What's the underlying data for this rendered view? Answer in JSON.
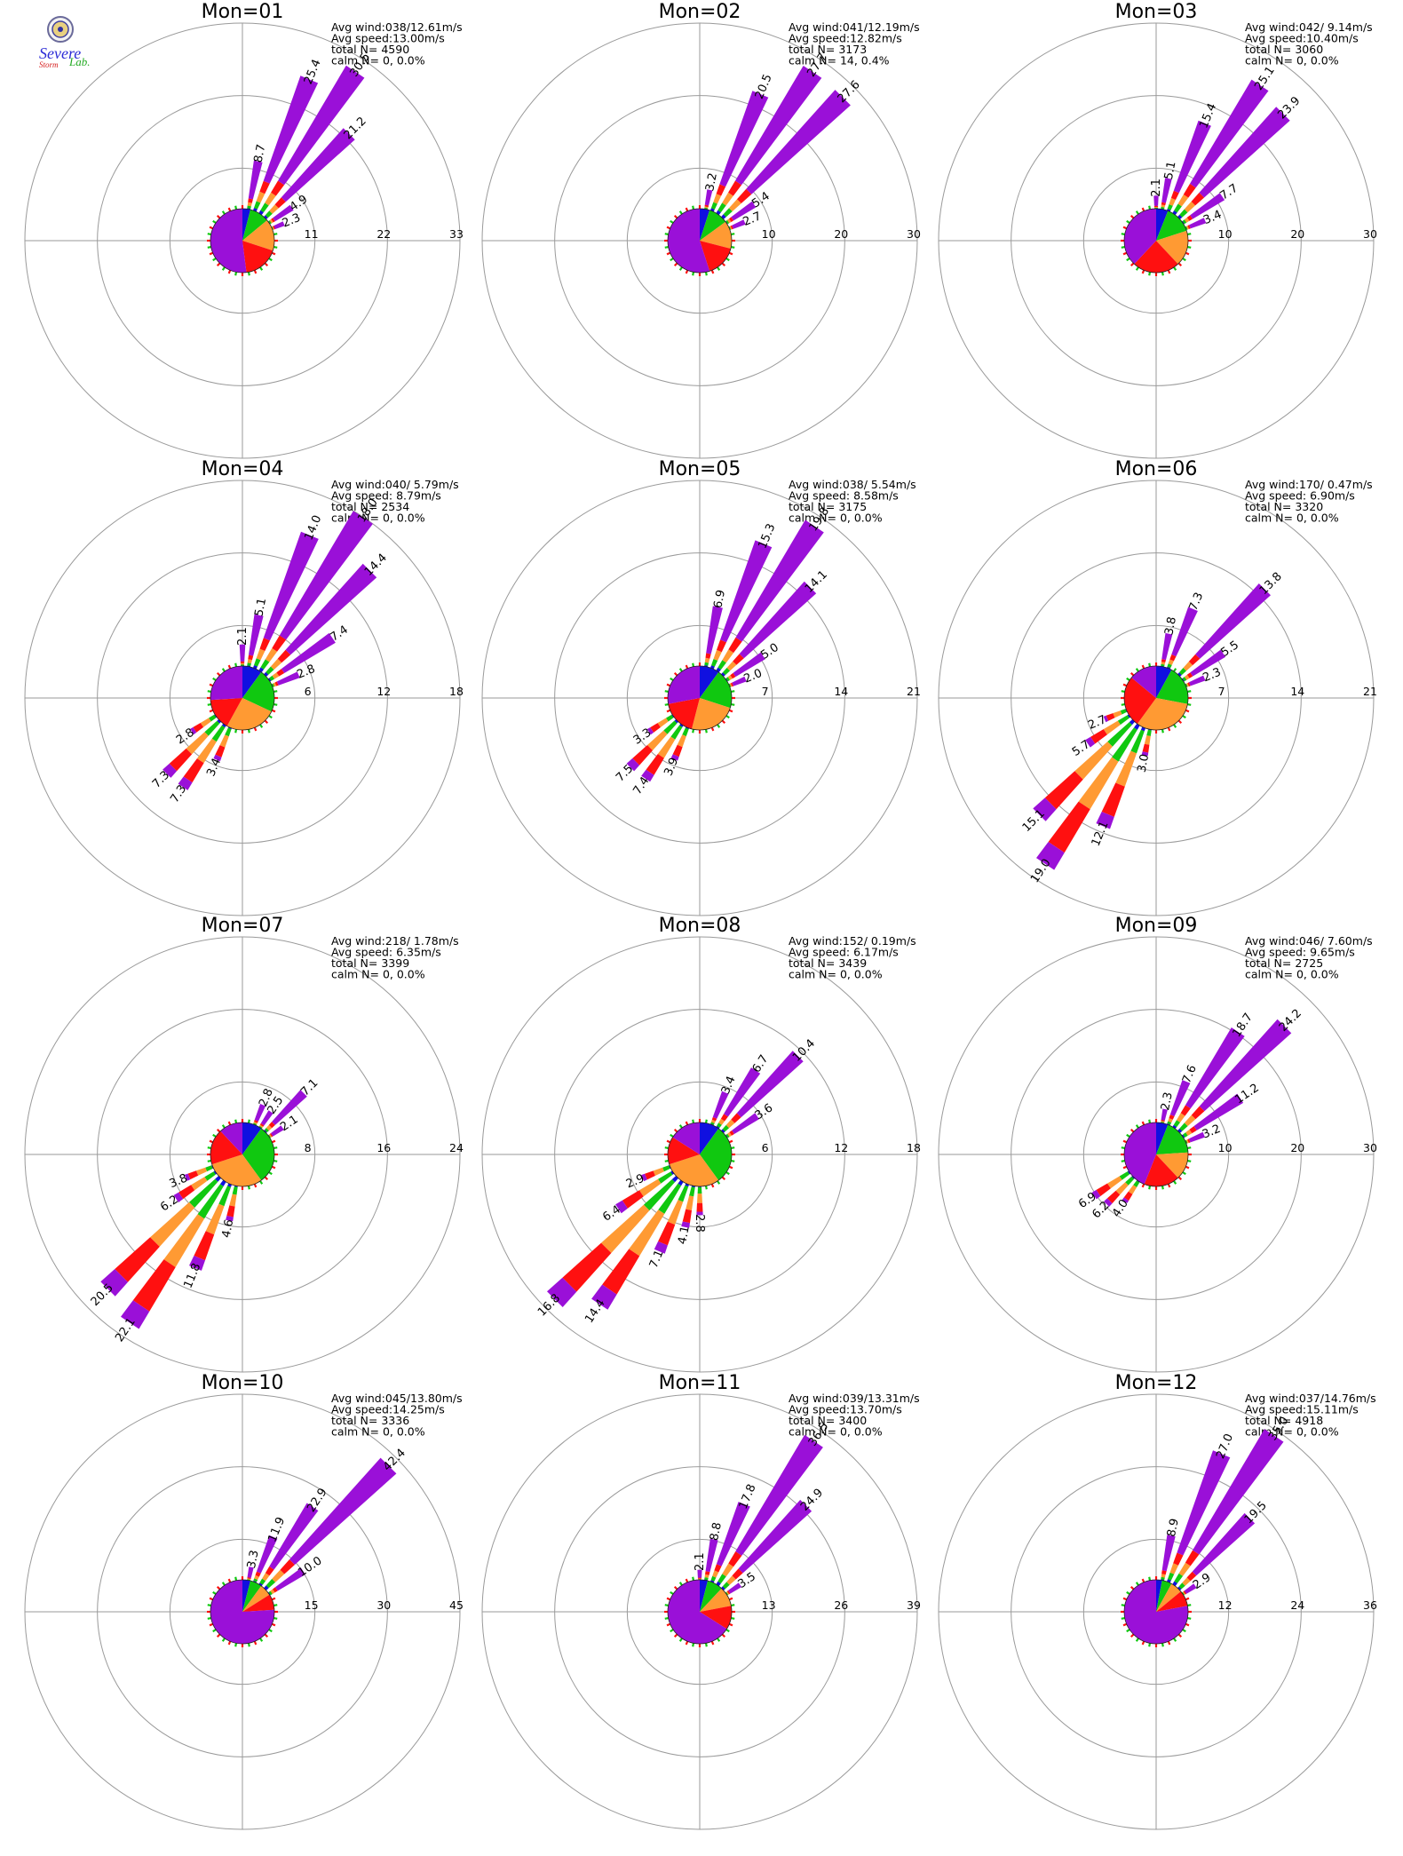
{
  "logo": {
    "seal_text": "",
    "line1": "Severe",
    "line2": "Storm",
    "line3": "Lab.",
    "colors": {
      "s": "#2b2bd6",
      "storm": "#d62020",
      "lab": "#22aa22"
    }
  },
  "colors": {
    "speed_bins": [
      "#1010e0",
      "#10c810",
      "#ff9a33",
      "#ff1010",
      "#9a10d8"
    ],
    "grid": "#9a9a9a"
  },
  "chart_data": [
    {
      "type": "windrose",
      "title": "Mon=01",
      "info": [
        "Avg wind:038/12.61m/s",
        "Avg speed:13.00m/s",
        "total N=      4590",
        "calm N=      0,   0.0%"
      ],
      "ticks": [
        "11",
        "22",
        "33"
      ],
      "rmax": 33,
      "petals": [
        {
          "dir": 22.5,
          "value": 25.4
        },
        {
          "dir": 33.75,
          "value": 30.5
        },
        {
          "dir": 45,
          "value": 21.2
        },
        {
          "dir": 11.25,
          "value": 8.7
        },
        {
          "dir": 56.25,
          "value": 4.9
        },
        {
          "dir": 67.5,
          "value": 2.3
        }
      ],
      "pie": [
        0.04,
        0.1,
        0.16,
        0.18,
        0.52
      ]
    },
    {
      "type": "windrose",
      "title": "Mon=02",
      "info": [
        "Avg wind:041/12.19m/s",
        "Avg speed:12.82m/s",
        "total N=      3173",
        "calm N=     14,   0.4%"
      ],
      "ticks": [
        "10",
        "20",
        "30"
      ],
      "rmax": 30,
      "petals": [
        {
          "dir": 22.5,
          "value": 20.5
        },
        {
          "dir": 33.75,
          "value": 27.7
        },
        {
          "dir": 45,
          "value": 27.6
        },
        {
          "dir": 11.25,
          "value": 3.2
        },
        {
          "dir": 56.25,
          "value": 5.4
        },
        {
          "dir": 67.5,
          "value": 2.7
        }
      ],
      "pie": [
        0.05,
        0.1,
        0.14,
        0.16,
        0.55
      ]
    },
    {
      "type": "windrose",
      "title": "Mon=03",
      "info": [
        "Avg wind:042/ 9.14m/s",
        "Avg speed:10.40m/s",
        "total N=      3060",
        "calm N=      0,   0.0%"
      ],
      "ticks": [
        "10",
        "20",
        "30"
      ],
      "rmax": 30,
      "petals": [
        {
          "dir": 22.5,
          "value": 15.4
        },
        {
          "dir": 33.75,
          "value": 25.1
        },
        {
          "dir": 45,
          "value": 23.9
        },
        {
          "dir": 11.25,
          "value": 5.1
        },
        {
          "dir": 0,
          "value": 2.1
        },
        {
          "dir": 56.25,
          "value": 7.7
        },
        {
          "dir": 67.5,
          "value": 3.4
        }
      ],
      "pie": [
        0.06,
        0.14,
        0.18,
        0.24,
        0.38
      ]
    },
    {
      "type": "windrose",
      "title": "Mon=04",
      "info": [
        "Avg wind:040/ 5.79m/s",
        "Avg speed: 8.79m/s",
        "total N=      2534",
        "calm N=      0,   0.0%"
      ],
      "ticks": [
        "6",
        "12",
        "18"
      ],
      "rmax": 18,
      "petals": [
        {
          "dir": 22.5,
          "value": 14.0
        },
        {
          "dir": 33.75,
          "value": 18.0
        },
        {
          "dir": 45,
          "value": 14.4
        },
        {
          "dir": 11.25,
          "value": 5.1
        },
        {
          "dir": 0,
          "value": 2.1
        },
        {
          "dir": 56.25,
          "value": 7.4
        },
        {
          "dir": 67.5,
          "value": 2.8
        },
        {
          "dir": 213.75,
          "value": 7.3
        },
        {
          "dir": 225,
          "value": 7.3
        },
        {
          "dir": 236.25,
          "value": 2.8
        },
        {
          "dir": 202.5,
          "value": 3.4
        }
      ],
      "pie": [
        0.1,
        0.22,
        0.26,
        0.16,
        0.26
      ]
    },
    {
      "type": "windrose",
      "title": "Mon=05",
      "info": [
        "Avg wind:038/ 5.54m/s",
        "Avg speed: 8.58m/s",
        "total N=      3175",
        "calm N=      0,   0.0%"
      ],
      "ticks": [
        "7",
        "14",
        "21"
      ],
      "rmax": 21,
      "petals": [
        {
          "dir": 22.5,
          "value": 15.3
        },
        {
          "dir": 33.75,
          "value": 19.8
        },
        {
          "dir": 45,
          "value": 14.1
        },
        {
          "dir": 11.25,
          "value": 6.9
        },
        {
          "dir": 56.25,
          "value": 5.0
        },
        {
          "dir": 67.5,
          "value": 2.0
        },
        {
          "dir": 213.75,
          "value": 7.4
        },
        {
          "dir": 225,
          "value": 7.5
        },
        {
          "dir": 236.25,
          "value": 3.3
        },
        {
          "dir": 202.5,
          "value": 3.9
        }
      ],
      "pie": [
        0.1,
        0.2,
        0.24,
        0.18,
        0.28
      ]
    },
    {
      "type": "windrose",
      "title": "Mon=06",
      "info": [
        "Avg wind:170/ 0.47m/s",
        "Avg speed: 6.90m/s",
        "total N=      3320",
        "calm N=      0,   0.0%"
      ],
      "ticks": [
        "7",
        "14",
        "21"
      ],
      "rmax": 21,
      "petals": [
        {
          "dir": 45,
          "value": 13.8
        },
        {
          "dir": 22.5,
          "value": 7.3
        },
        {
          "dir": 11.25,
          "value": 3.8
        },
        {
          "dir": 56.25,
          "value": 5.5
        },
        {
          "dir": 67.5,
          "value": 2.3
        },
        {
          "dir": 213.75,
          "value": 19.0
        },
        {
          "dir": 225,
          "value": 15.1
        },
        {
          "dir": 202.5,
          "value": 12.1
        },
        {
          "dir": 236.25,
          "value": 5.7
        },
        {
          "dir": 247.5,
          "value": 2.7
        },
        {
          "dir": 191.25,
          "value": 3.0
        }
      ],
      "pie": [
        0.08,
        0.2,
        0.32,
        0.26,
        0.14
      ]
    },
    {
      "type": "windrose",
      "title": "Mon=07",
      "info": [
        "Avg wind:218/ 1.78m/s",
        "Avg speed: 6.35m/s",
        "total N=      3399",
        "calm N=      0,   0.0%"
      ],
      "ticks": [
        "8",
        "16",
        "24"
      ],
      "rmax": 24,
      "petals": [
        {
          "dir": 45,
          "value": 7.1
        },
        {
          "dir": 33.75,
          "value": 2.5
        },
        {
          "dir": 22.5,
          "value": 2.8
        },
        {
          "dir": 56.25,
          "value": 2.1
        },
        {
          "dir": 213.75,
          "value": 22.1
        },
        {
          "dir": 225,
          "value": 20.5
        },
        {
          "dir": 202.5,
          "value": 11.8
        },
        {
          "dir": 236.25,
          "value": 6.2
        },
        {
          "dir": 247.5,
          "value": 3.8
        },
        {
          "dir": 191.25,
          "value": 4.6
        }
      ],
      "pie": [
        0.1,
        0.3,
        0.3,
        0.18,
        0.12
      ]
    },
    {
      "type": "windrose",
      "title": "Mon=08",
      "info": [
        "Avg wind:152/ 0.19m/s",
        "Avg speed: 6.17m/s",
        "total N=      3439",
        "calm N=      0,   0.0%"
      ],
      "ticks": [
        "6",
        "12",
        "18"
      ],
      "rmax": 18,
      "petals": [
        {
          "dir": 45,
          "value": 10.4
        },
        {
          "dir": 33.75,
          "value": 6.7
        },
        {
          "dir": 22.5,
          "value": 3.4
        },
        {
          "dir": 56.25,
          "value": 3.6
        },
        {
          "dir": 225,
          "value": 16.8
        },
        {
          "dir": 213.75,
          "value": 14.4
        },
        {
          "dir": 236.25,
          "value": 6.4
        },
        {
          "dir": 247.5,
          "value": 2.9
        },
        {
          "dir": 202.5,
          "value": 7.1
        },
        {
          "dir": 191.25,
          "value": 4.1
        },
        {
          "dir": 180,
          "value": 2.8
        }
      ],
      "pie": [
        0.1,
        0.3,
        0.3,
        0.14,
        0.16
      ]
    },
    {
      "type": "windrose",
      "title": "Mon=09",
      "info": [
        "Avg wind:046/ 7.60m/s",
        "Avg speed: 9.65m/s",
        "total N=      2725",
        "calm N=      0,   0.0%"
      ],
      "ticks": [
        "10",
        "20",
        "30"
      ],
      "rmax": 30,
      "petals": [
        {
          "dir": 45,
          "value": 24.2
        },
        {
          "dir": 33.75,
          "value": 18.7
        },
        {
          "dir": 56.25,
          "value": 11.2
        },
        {
          "dir": 22.5,
          "value": 7.6
        },
        {
          "dir": 11.25,
          "value": 2.3
        },
        {
          "dir": 67.5,
          "value": 3.2
        },
        {
          "dir": 225,
          "value": 6.2
        },
        {
          "dir": 236.25,
          "value": 6.9
        },
        {
          "dir": 213.75,
          "value": 4.0
        }
      ],
      "pie": [
        0.06,
        0.18,
        0.14,
        0.18,
        0.44
      ]
    },
    {
      "type": "windrose",
      "title": "Mon=10",
      "info": [
        "Avg wind:045/13.80m/s",
        "Avg speed:14.25m/s",
        "total N=      3336",
        "calm N=      0,   0.0%"
      ],
      "ticks": [
        "15",
        "30",
        "45"
      ],
      "rmax": 45,
      "petals": [
        {
          "dir": 45,
          "value": 42.4
        },
        {
          "dir": 33.75,
          "value": 22.9
        },
        {
          "dir": 22.5,
          "value": 11.9
        },
        {
          "dir": 56.25,
          "value": 10.0
        },
        {
          "dir": 11.25,
          "value": 3.3
        }
      ],
      "pie": [
        0.04,
        0.06,
        0.06,
        0.08,
        0.76
      ]
    },
    {
      "type": "windrose",
      "title": "Mon=11",
      "info": [
        "Avg wind:039/13.31m/s",
        "Avg speed:13.70m/s",
        "total N=      3400",
        "calm N=      0,   0.0%"
      ],
      "ticks": [
        "13",
        "26",
        "39"
      ],
      "rmax": 39,
      "petals": [
        {
          "dir": 33.75,
          "value": 36.5
        },
        {
          "dir": 45,
          "value": 24.9
        },
        {
          "dir": 22.5,
          "value": 17.8
        },
        {
          "dir": 11.25,
          "value": 8.8
        },
        {
          "dir": 56.25,
          "value": 3.5
        },
        {
          "dir": 0,
          "value": 2.1
        }
      ],
      "pie": [
        0.04,
        0.08,
        0.1,
        0.12,
        0.66
      ]
    },
    {
      "type": "windrose",
      "title": "Mon=12",
      "info": [
        "Avg wind:037/14.76m/s",
        "Avg speed:15.11m/s",
        "total N=      4918",
        "calm N=      0,   0.0%"
      ],
      "ticks": [
        "12",
        "24",
        "36"
      ],
      "rmax": 36,
      "petals": [
        {
          "dir": 33.75,
          "value": 35.0
        },
        {
          "dir": 22.5,
          "value": 27.0
        },
        {
          "dir": 45,
          "value": 19.5
        },
        {
          "dir": 11.25,
          "value": 8.9
        },
        {
          "dir": 56.25,
          "value": 2.9
        }
      ],
      "pie": [
        0.03,
        0.05,
        0.06,
        0.08,
        0.78
      ]
    }
  ]
}
